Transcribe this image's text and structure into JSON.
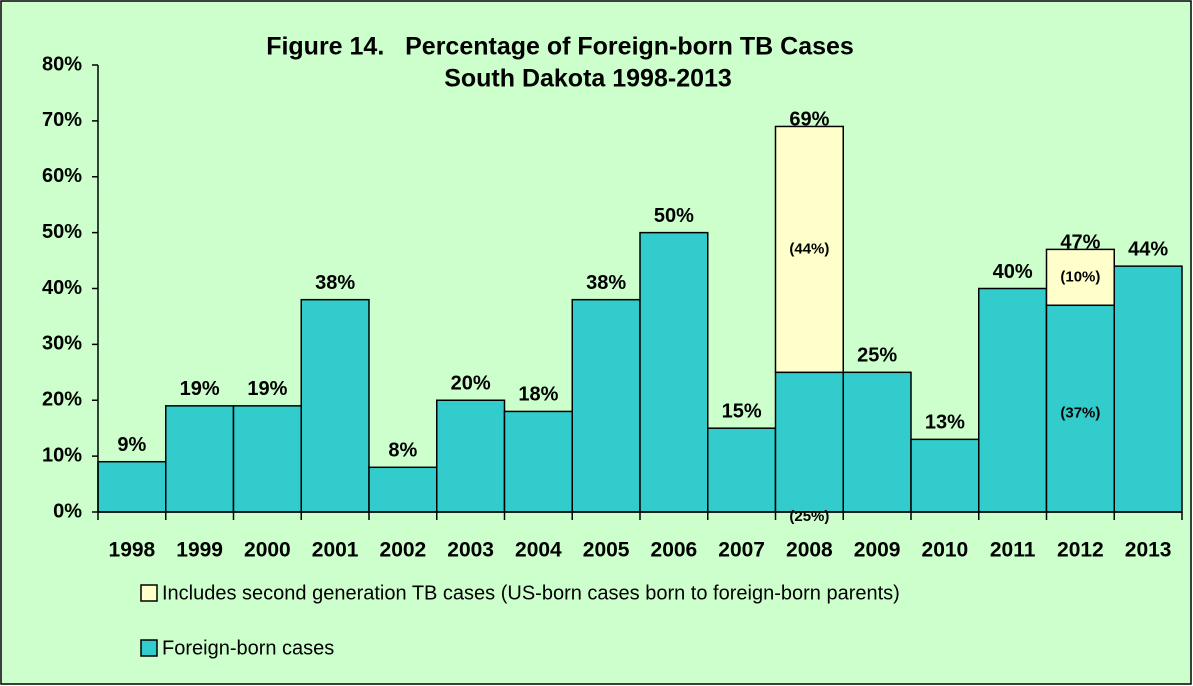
{
  "chart_data": {
    "type": "stacked_bar",
    "title": [
      "Figure 14.   Percentage of Foreign-born TB Cases",
      "South Dakota 1998-2013"
    ],
    "categories": [
      "1998",
      "1999",
      "2000",
      "2001",
      "2002",
      "2003",
      "2004",
      "2005",
      "2006",
      "2007",
      "2008",
      "2009",
      "2010",
      "2011",
      "2012",
      "2013"
    ],
    "series": [
      {
        "name": "Foreign-born cases",
        "color": "#33CCCC",
        "values": [
          9,
          19,
          19,
          38,
          8,
          20,
          18,
          38,
          50,
          15,
          25,
          25,
          13,
          40,
          37,
          44
        ],
        "value_labels": [
          "9%",
          "19%",
          "19%",
          "38%",
          "8%",
          "20%",
          "18%",
          "38%",
          "50%",
          "15%",
          "(25%)",
          "25%",
          "13%",
          "40%",
          "(37%)",
          "44%"
        ]
      },
      {
        "name": "Includes second generation TB cases (US-born cases born to foreign-born parents)",
        "color": "#FFFFCC",
        "values": [
          null,
          null,
          null,
          null,
          null,
          null,
          null,
          null,
          null,
          null,
          44,
          null,
          null,
          null,
          10,
          null
        ],
        "value_labels": [
          null,
          null,
          null,
          null,
          null,
          null,
          null,
          null,
          null,
          null,
          "(44%)",
          null,
          null,
          null,
          "(10%)",
          null
        ]
      }
    ],
    "total_labels": [
      null,
      null,
      null,
      null,
      null,
      null,
      null,
      null,
      null,
      null,
      "69%",
      null,
      null,
      null,
      "47%",
      null
    ],
    "ylim": [
      0,
      80
    ],
    "yticks": [
      {
        "value": 0,
        "label": "0%"
      },
      {
        "value": 10,
        "label": "10%"
      },
      {
        "value": 20,
        "label": "20%"
      },
      {
        "value": 30,
        "label": "30%"
      },
      {
        "value": 40,
        "label": "40%"
      },
      {
        "value": 50,
        "label": "50%"
      },
      {
        "value": 60,
        "label": "60%"
      },
      {
        "value": 70,
        "label": "70%"
      },
      {
        "value": 80,
        "label": "80%"
      }
    ],
    "grid": false
  }
}
